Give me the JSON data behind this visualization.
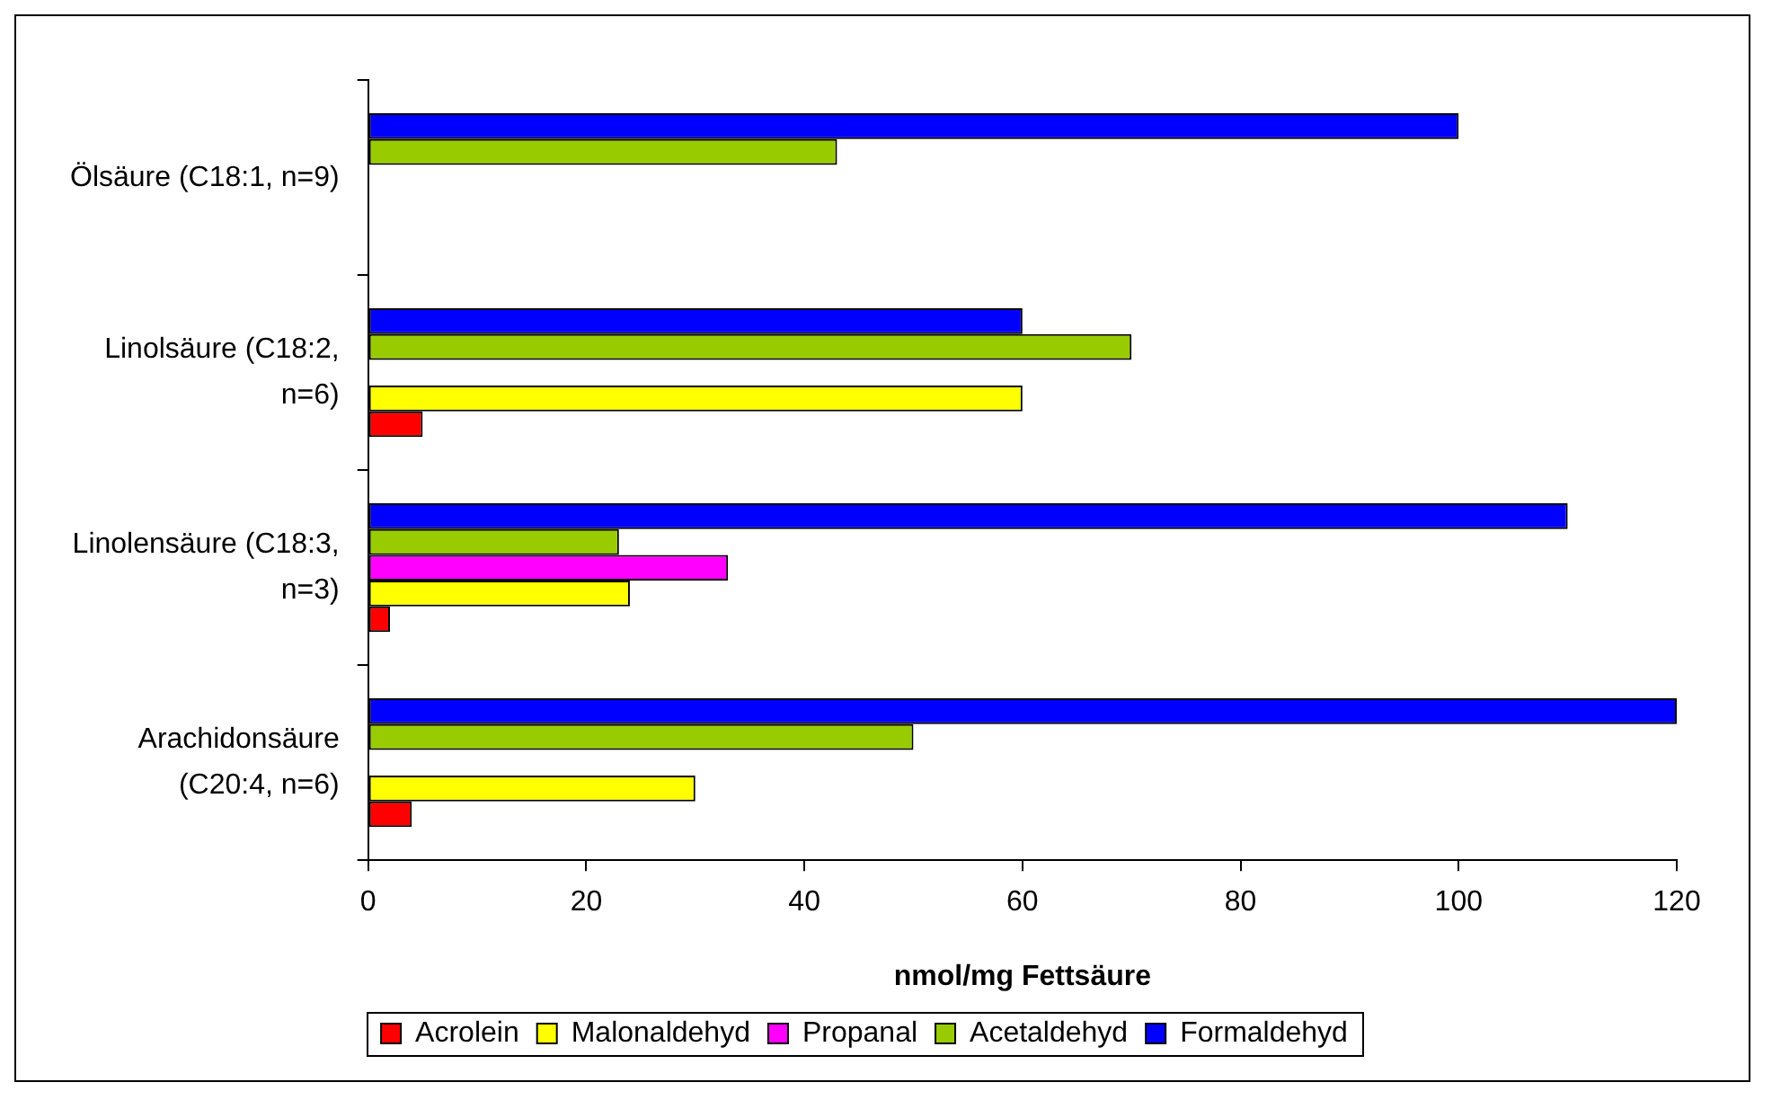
{
  "chart_data": {
    "type": "bar",
    "orientation": "horizontal",
    "xlabel": "nmol/mg Fettsäure",
    "categories": [
      "Ölsäure (C18:1, n=9)",
      "Linolsäure (C18:2, n=6)",
      "Linolensäure (C18:3, n=3)",
      "Arachidonsäure (C20:4, n=6)"
    ],
    "series": [
      {
        "name": "Acrolein",
        "color": "#ff0000",
        "values": [
          null,
          5,
          2,
          4
        ]
      },
      {
        "name": "Malonaldehyd",
        "color": "#ffff00",
        "values": [
          null,
          60,
          24,
          30
        ]
      },
      {
        "name": "Propanal",
        "color": "#ff00ff",
        "values": [
          null,
          null,
          33,
          null
        ]
      },
      {
        "name": "Acetaldehyd",
        "color": "#99cc00",
        "values": [
          43,
          70,
          23,
          50
        ]
      },
      {
        "name": "Formaldehyd",
        "color": "#0000ff",
        "values": [
          100,
          60,
          110,
          120
        ]
      }
    ],
    "xlim": [
      0,
      120
    ],
    "xticks": [
      0,
      20,
      40,
      60,
      80,
      100,
      120
    ],
    "grid": false,
    "legend": "bottom"
  }
}
